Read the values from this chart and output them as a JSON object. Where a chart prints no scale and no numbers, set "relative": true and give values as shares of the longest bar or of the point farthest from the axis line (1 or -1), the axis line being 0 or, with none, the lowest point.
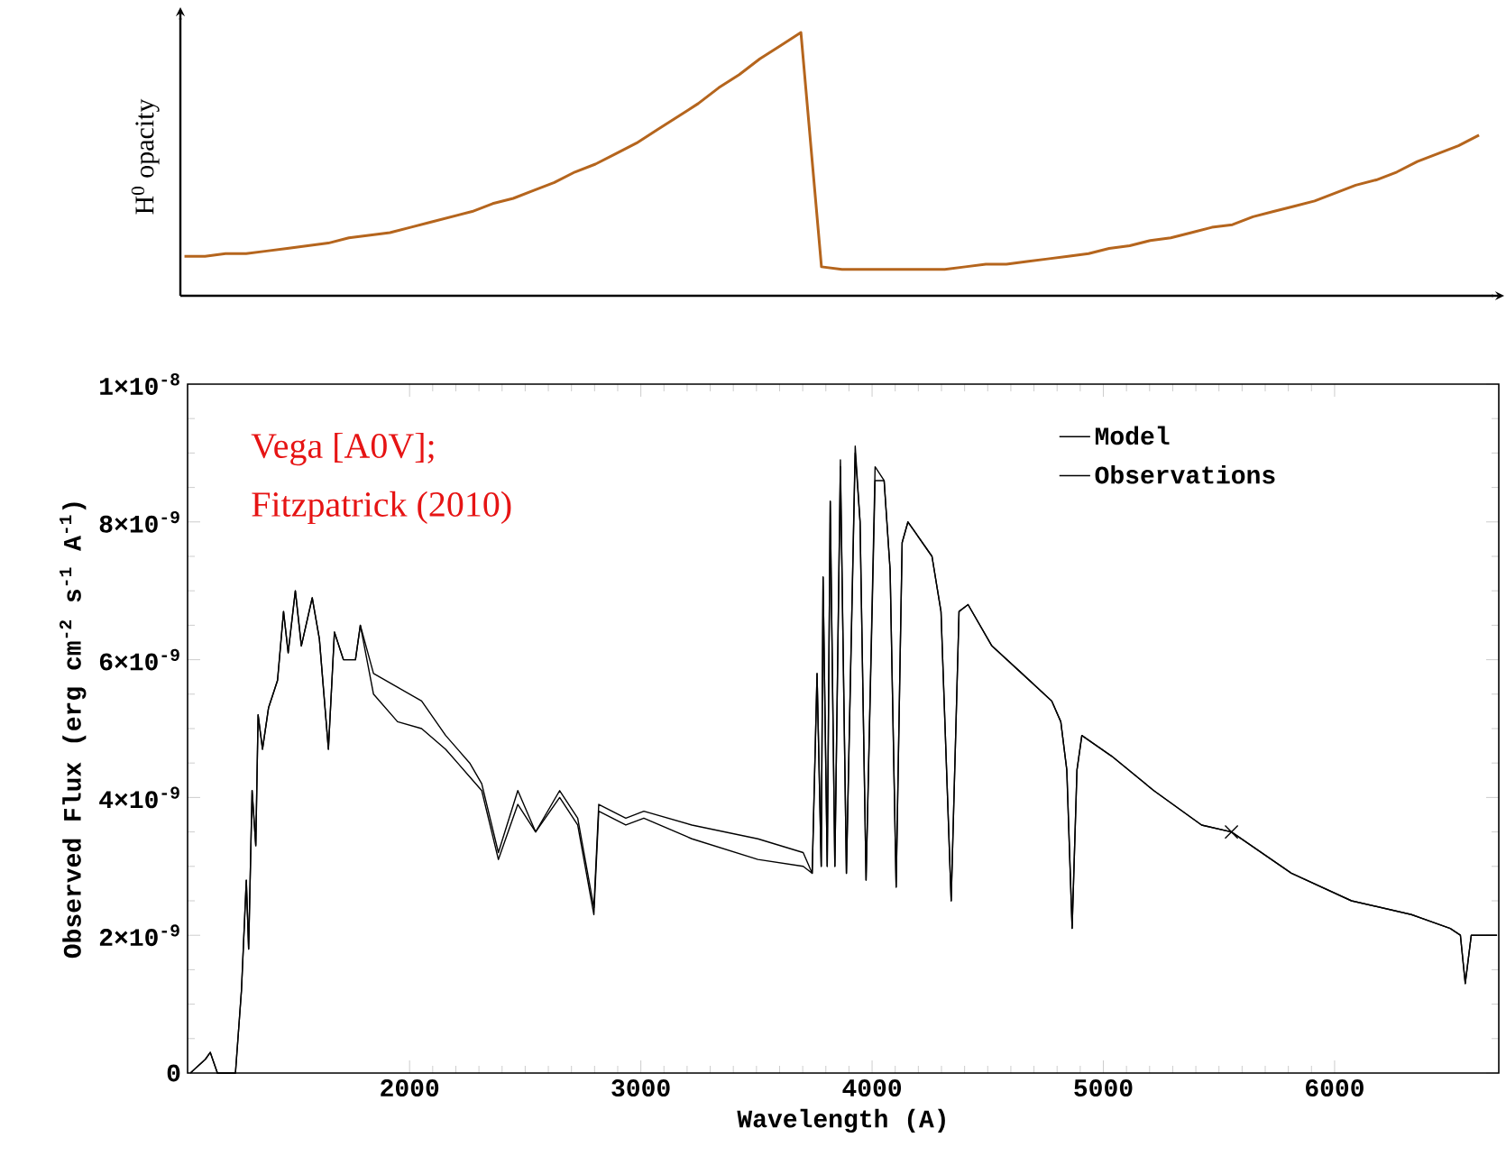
{
  "chart_data": [
    {
      "type": "line",
      "ylabel": "H$^{0}$ opacity",
      "relative": true,
      "categories": [
        null,
        null,
        null,
        null,
        null,
        null,
        null,
        null,
        null,
        null,
        null,
        null,
        null,
        null,
        null,
        null,
        null,
        null,
        null,
        null,
        null,
        null,
        null,
        null,
        null,
        null,
        null,
        null,
        null,
        null,
        null,
        null,
        null,
        null,
        null,
        null,
        null,
        null,
        null,
        null,
        null,
        null,
        null,
        null,
        null,
        null,
        null,
        null,
        null,
        null,
        null,
        null,
        null,
        null,
        null,
        null,
        null,
        null,
        null,
        null,
        null,
        null,
        null,
        null
      ],
      "series": [
        {
          "color": "#b5651d",
          "values": [
            0.15,
            0.15,
            0.16,
            0.16,
            0.17,
            0.18,
            0.19,
            0.2,
            0.22,
            0.23,
            0.24,
            0.26,
            0.28,
            0.3,
            0.32,
            0.35,
            0.37,
            0.4,
            0.43,
            0.47,
            0.5,
            0.54,
            0.58,
            0.63,
            0.68,
            0.73,
            0.79,
            0.84,
            0.9,
            0.95,
            1.0,
            0.11,
            0.1,
            0.1,
            0.1,
            0.1,
            0.1,
            0.1,
            0.11,
            0.12,
            0.12,
            0.13,
            0.14,
            0.15,
            0.16,
            0.18,
            0.19,
            0.21,
            0.22,
            0.24,
            0.26,
            0.27,
            0.3,
            0.32,
            0.34,
            0.36,
            0.39,
            0.42,
            0.44,
            0.47,
            0.51,
            0.54,
            0.57,
            0.61
          ]
        }
      ]
    },
    {
      "type": "line",
      "xlabel": "Wavelength (A)",
      "ylabel": "Observed Flux (erg cm$^{-2}$ s$^{-1}$ A$^{-1}$)",
      "annotations": [
        "Vega [A0V];",
        "Fitzpatrick (2010)"
      ],
      "legend": "top right",
      "xlim": [
        1040,
        6710
      ],
      "ylim": [
        0,
        1e-08
      ],
      "xticks": [
        2000,
        3000,
        4000,
        5000,
        6000
      ],
      "yticks": [
        0,
        {
          "value": 2e-09,
          "label": "2×10$^{-9}$"
        },
        {
          "value": 4e-09,
          "label": "4×10$^{-9}$"
        },
        {
          "value": 6e-09,
          "label": "6×10$^{-9}$"
        },
        {
          "value": 8e-09,
          "label": "8×10$^{-9}$"
        },
        {
          "value": 1e-08,
          "label": "1×10$^{-8}$"
        }
      ],
      "x": [
        1052,
        1117,
        1138,
        1169,
        1247,
        1273,
        1294,
        1304,
        1319,
        1335,
        1345,
        1364,
        1390,
        1429,
        1455,
        1475,
        1506,
        1532,
        1579,
        1610,
        1649,
        1675,
        1714,
        1766,
        1787,
        1844,
        1948,
        2052,
        2156,
        2260,
        2312,
        2384,
        2468,
        2545,
        2649,
        2727,
        2797,
        2818,
        2935,
        3013,
        3221,
        3506,
        3702,
        3741,
        3762,
        3780,
        3788,
        3806,
        3819,
        3839,
        3863,
        3889,
        3927,
        3948,
        3974,
        4013,
        4052,
        4078,
        4104,
        4130,
        4155,
        4259,
        4298,
        4342,
        4376,
        4415,
        4518,
        4648,
        4777,
        4816,
        4842,
        4865,
        4886,
        4907,
        5036,
        5218,
        5425,
        5554,
        5813,
        6073,
        6332,
        6500,
        6544,
        6565,
        6591,
        6630,
        6702
      ],
      "series": [
        {
          "name": "Model",
          "color": "#000000",
          "values": [
            0,
            2e-10,
            3e-10,
            0,
            0,
            1.2e-09,
            2.8e-09,
            1.8e-09,
            4.1e-09,
            3.3e-09,
            5.2e-09,
            4.7e-09,
            5.3e-09,
            5.7e-09,
            6.7e-09,
            6.1e-09,
            7e-09,
            6.2e-09,
            6.9e-09,
            6.3e-09,
            4.7e-09,
            6.4e-09,
            6e-09,
            6e-09,
            6.5e-09,
            5.8e-09,
            5.6e-09,
            5.4e-09,
            4.9e-09,
            4.5e-09,
            4.2e-09,
            3.2e-09,
            4.1e-09,
            3.5e-09,
            4.1e-09,
            3.7e-09,
            2.4e-09,
            3.9e-09,
            3.7e-09,
            3.8e-09,
            3.6e-09,
            3.4e-09,
            3.2e-09,
            2.9e-09,
            5.8e-09,
            3e-09,
            7.2e-09,
            3e-09,
            8.3e-09,
            3e-09,
            8.9e-09,
            2.9e-09,
            9.1e-09,
            8e-09,
            2.8e-09,
            8.8e-09,
            8.6e-09,
            7.3e-09,
            2.7e-09,
            7.7e-09,
            8e-09,
            7.5e-09,
            6.7e-09,
            2.5e-09,
            6.7e-09,
            6.8e-09,
            6.2e-09,
            5.8e-09,
            5.4e-09,
            5.1e-09,
            4.4e-09,
            2.1e-09,
            4.4e-09,
            4.9e-09,
            4.6e-09,
            4.1e-09,
            3.6e-09,
            3.5e-09,
            2.9e-09,
            2.5e-09,
            2.3e-09,
            2.1e-09,
            2e-09,
            1.3e-09,
            2e-09,
            2e-09,
            2e-09
          ]
        },
        {
          "name": "Observations",
          "color": "#000000",
          "values": [
            0,
            2e-10,
            3e-10,
            0,
            0,
            1.2e-09,
            2.8e-09,
            1.8e-09,
            4.1e-09,
            3.3e-09,
            5.2e-09,
            4.7e-09,
            5.3e-09,
            5.7e-09,
            6.7e-09,
            6.1e-09,
            7e-09,
            6.2e-09,
            6.9e-09,
            6.3e-09,
            4.7e-09,
            6.4e-09,
            6e-09,
            6e-09,
            6.5e-09,
            5.5e-09,
            5.1e-09,
            5e-09,
            4.7e-09,
            4.3e-09,
            4.1e-09,
            3.1e-09,
            3.9e-09,
            3.5e-09,
            4e-09,
            3.6e-09,
            2.3e-09,
            3.8e-09,
            3.6e-09,
            3.7e-09,
            3.4e-09,
            3.1e-09,
            3e-09,
            2.9e-09,
            5.8e-09,
            3e-09,
            7.2e-09,
            3e-09,
            8.3e-09,
            3e-09,
            8.8e-09,
            2.9e-09,
            9e-09,
            8e-09,
            2.8e-09,
            8.6e-09,
            8.6e-09,
            7.3e-09,
            2.7e-09,
            7.7e-09,
            8e-09,
            7.5e-09,
            6.7e-09,
            2.5e-09,
            6.7e-09,
            6.8e-09,
            6.2e-09,
            5.8e-09,
            5.4e-09,
            5.1e-09,
            4.4e-09,
            2.1e-09,
            4.4e-09,
            4.9e-09,
            4.6e-09,
            4.1e-09,
            3.6e-09,
            3.5e-09,
            2.9e-09,
            2.5e-09,
            2.3e-09,
            2.1e-09,
            2e-09,
            1.3e-09,
            2e-09,
            2e-09,
            2e-09
          ]
        },
        {
          "type": "scatter",
          "color": "#000000",
          "marker": "cross",
          "x": [
            5554
          ],
          "values": [
            3.5e-09
          ]
        }
      ]
    }
  ]
}
